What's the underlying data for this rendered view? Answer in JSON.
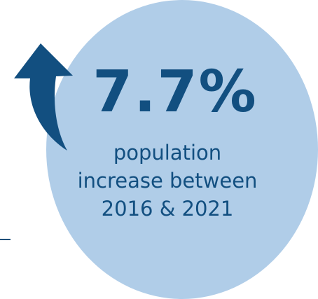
{
  "infographic": {
    "stat_value": "7.7%",
    "caption_lines": [
      "population",
      "increase between",
      "2016 & 2021"
    ]
  },
  "icons": {
    "arrow": "curved-up-arrow-icon"
  },
  "colors": {
    "circle_fill": "#b0cde8",
    "text": "#124f80",
    "arrow": "#124f80",
    "rule": "#1f4f7a"
  }
}
